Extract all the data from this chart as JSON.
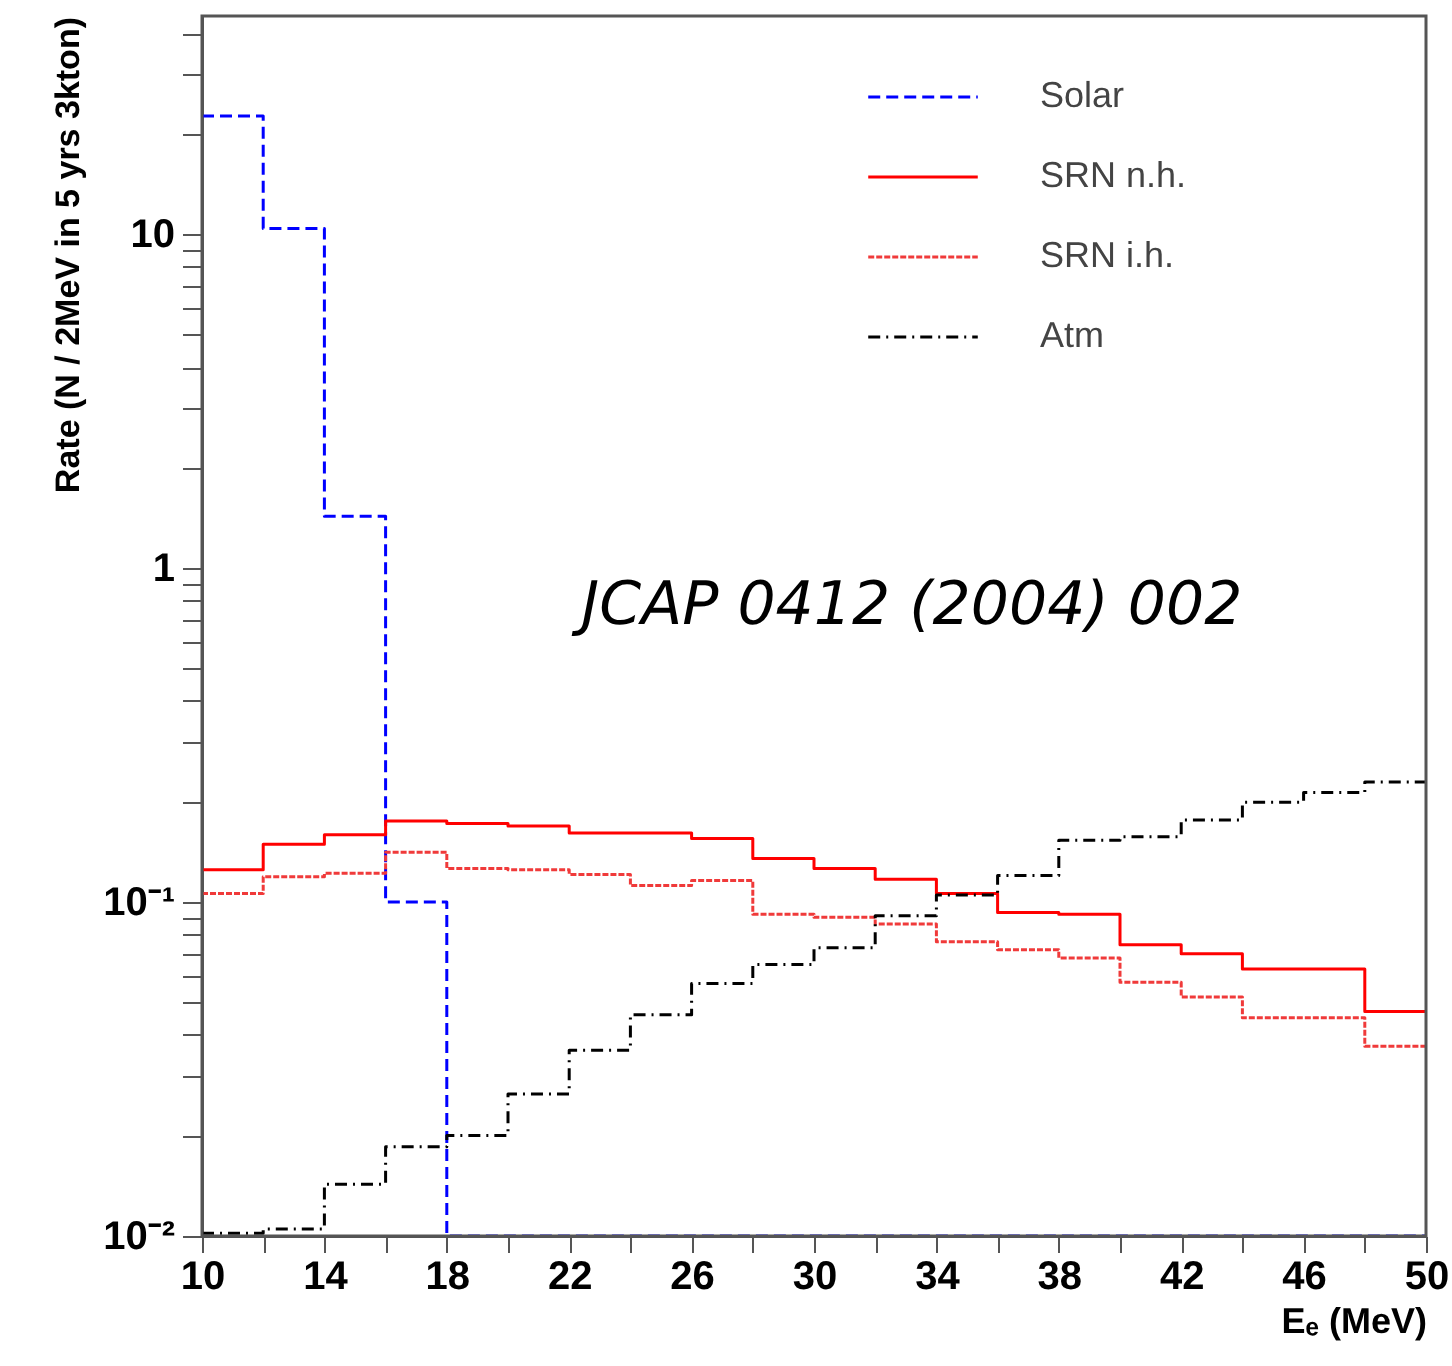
{
  "chart_data": {
    "type": "histogram",
    "xlabel": "Eₑ (MeV)",
    "ylabel": "Rate (N / 2MeV  in  5 yrs  3kton)",
    "log": "y",
    "xlim": [
      10,
      50
    ],
    "ylim": [
      0.01,
      45
    ],
    "grid": false,
    "legend": "top right",
    "xticks": [
      10,
      {
        "value": 12,
        "label": null
      },
      14,
      {
        "value": 16,
        "label": null
      },
      18,
      {
        "value": 20,
        "label": null
      },
      22,
      {
        "value": 24,
        "label": null
      },
      26,
      {
        "value": 28,
        "label": null
      },
      30,
      {
        "value": 32,
        "label": null
      },
      34,
      {
        "value": 36,
        "label": null
      },
      38,
      {
        "value": 40,
        "label": null
      },
      42,
      {
        "value": 44,
        "label": null
      },
      46,
      {
        "value": 48,
        "label": null
      },
      50
    ],
    "yticks": [
      {
        "value": 0.01,
        "label": "10⁻²"
      },
      {
        "value": 0.02,
        "label": null
      },
      {
        "value": 0.03,
        "label": null
      },
      {
        "value": 0.04,
        "label": null
      },
      {
        "value": 0.05,
        "label": null
      },
      {
        "value": 0.06,
        "label": null
      },
      {
        "value": 0.07,
        "label": null
      },
      {
        "value": 0.08,
        "label": null
      },
      {
        "value": 0.09,
        "label": null
      },
      {
        "value": 0.1,
        "label": "10⁻¹"
      },
      {
        "value": 0.2,
        "label": null
      },
      {
        "value": 0.3,
        "label": null
      },
      {
        "value": 0.4,
        "label": null
      },
      {
        "value": 0.5,
        "label": null
      },
      {
        "value": 0.6,
        "label": null
      },
      {
        "value": 0.7,
        "label": null
      },
      {
        "value": 0.8,
        "label": null
      },
      {
        "value": 0.9,
        "label": null
      },
      1,
      {
        "value": 2,
        "label": null
      },
      {
        "value": 3,
        "label": null
      },
      {
        "value": 4,
        "label": null
      },
      {
        "value": 5,
        "label": null
      },
      {
        "value": 6,
        "label": null
      },
      {
        "value": 7,
        "label": null
      },
      {
        "value": 8,
        "label": null
      },
      {
        "value": 9,
        "label": null
      },
      10,
      {
        "value": 20,
        "label": null
      },
      {
        "value": 30,
        "label": null
      },
      {
        "value": 40,
        "label": null
      }
    ],
    "bins": [
      10,
      12,
      14,
      16,
      18,
      20,
      22,
      24,
      26,
      28,
      30,
      32,
      34,
      36,
      38,
      40,
      42,
      44,
      46,
      48,
      50
    ],
    "series": [
      {
        "name": "Solar",
        "color": "#0000ff",
        "line_style": "dashed",
        "values": [
          22.6,
          10.4,
          1.43,
          0.1,
          null,
          null,
          null,
          null,
          null,
          null,
          null,
          null,
          null,
          null,
          null,
          null,
          null,
          null,
          null,
          null
        ]
      },
      {
        "name": "SRN n.h.",
        "color": "#ff0000",
        "line_style": "solid",
        "values": [
          0.125,
          0.149,
          0.159,
          0.175,
          0.172,
          0.169,
          0.161,
          0.161,
          0.155,
          0.135,
          0.126,
          0.117,
          0.106,
          0.093,
          0.092,
          0.0745,
          0.07,
          0.063,
          0.063,
          0.047
        ]
      },
      {
        "name": "SRN i.h.",
        "color": "#f03a3a",
        "line_style": "dotted",
        "values": [
          0.106,
          0.119,
          0.122,
          0.141,
          0.126,
          0.125,
          0.121,
          0.112,
          0.116,
          0.092,
          0.09,
          0.086,
          0.076,
          0.072,
          0.068,
          0.0575,
          0.052,
          0.045,
          0.045,
          0.037
        ]
      },
      {
        "name": "Atm",
        "color": "#000000",
        "line_style": "dashdot",
        "values": [
          0.0102,
          0.0105,
          0.0143,
          0.0185,
          0.02,
          0.0266,
          0.036,
          0.046,
          0.057,
          0.065,
          0.073,
          0.091,
          0.105,
          0.12,
          0.153,
          0.157,
          0.176,
          0.199,
          0.213,
          0.229
        ]
      }
    ],
    "annotations": [
      "JCAP 0412 (2004) 002"
    ]
  }
}
